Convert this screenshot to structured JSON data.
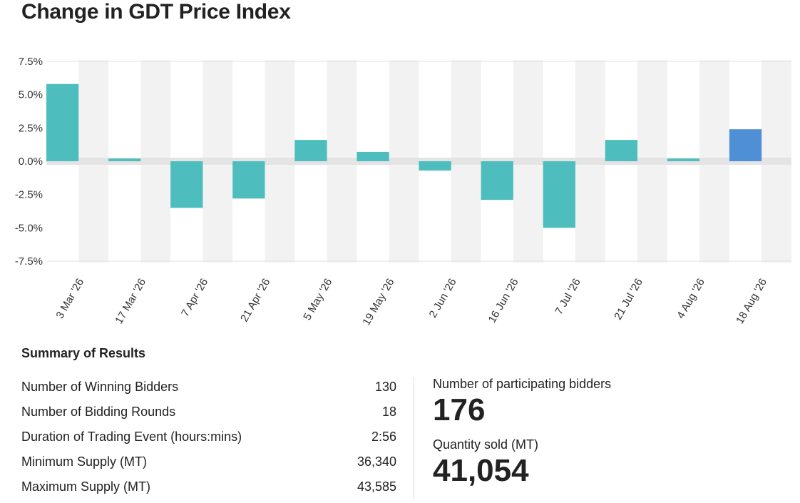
{
  "title": "Change in GDT Price Index",
  "chart_data": {
    "type": "bar",
    "title": "Change in GDT Price Index",
    "xlabel": "",
    "ylabel": "",
    "categories": [
      "3 Mar '26",
      "17 Mar '26",
      "7 Apr '26",
      "21 Apr '26",
      "5 May '26",
      "19 May '26",
      "2 Jun '26",
      "16 Jun '26",
      "7 Jul '26",
      "21 Jul '26",
      "4 Aug '26",
      "18 Aug '26"
    ],
    "values": [
      5.8,
      0.2,
      -3.5,
      -2.8,
      1.6,
      0.7,
      -0.7,
      -2.9,
      -5.0,
      1.6,
      0.2,
      2.4
    ],
    "yticks": [
      "7.5%",
      "5.0%",
      "2.5%",
      "0.0%",
      "-2.5%",
      "-5.0%",
      "-7.5%"
    ],
    "ylim": [
      -7.5,
      7.5
    ],
    "bar_color": "#4dbdbd",
    "highlight_color": "#4f8fd6",
    "highlight_index": 11,
    "band_color": "#f2f2f2",
    "zero_band_color": "#e4e4e4",
    "grid": true
  },
  "summary": {
    "heading": "Summary of Results",
    "rows": [
      {
        "label": "Number of Winning Bidders",
        "value": "130"
      },
      {
        "label": "Number of Bidding Rounds",
        "value": "18"
      },
      {
        "label": "Duration of Trading Event (hours:mins)",
        "value": "2:56"
      },
      {
        "label": "Minimum Supply (MT)",
        "value": "36,340"
      },
      {
        "label": "Maximum Supply (MT)",
        "value": "43,585"
      }
    ]
  },
  "stats": {
    "bidders_label": "Number of participating bidders",
    "bidders_value": "176",
    "quantity_label": "Quantity sold (MT)",
    "quantity_value": "41,054"
  }
}
